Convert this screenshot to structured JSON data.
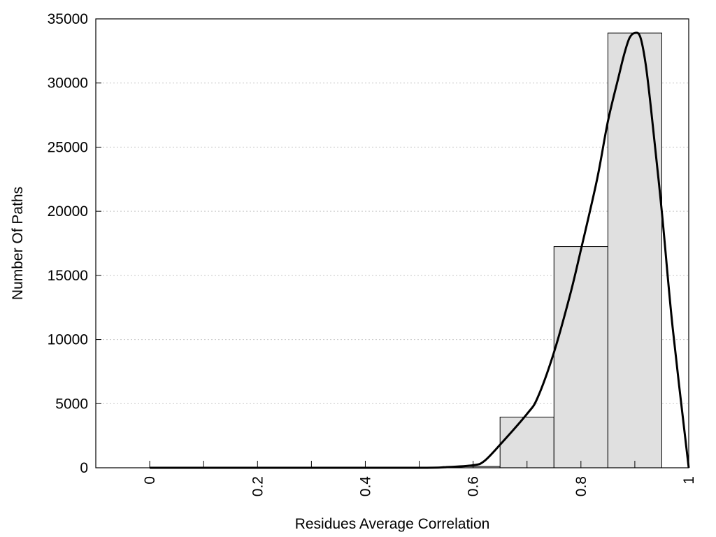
{
  "chart_data": {
    "type": "bar",
    "title": "",
    "xlabel": "Residues Average Correlation",
    "ylabel": "Number Of Paths",
    "xlim": [
      -0.1,
      1.0
    ],
    "ylim": [
      0,
      35000
    ],
    "grid": true,
    "x_ticks": [
      "0",
      "0.2",
      "0.4",
      "0.6",
      "0.8",
      "1"
    ],
    "y_ticks": [
      "0",
      "5000",
      "10000",
      "15000",
      "20000",
      "25000",
      "30000",
      "35000"
    ],
    "bins": [
      {
        "x0": 0.0,
        "x1": 0.05,
        "value": 0
      },
      {
        "x0": 0.05,
        "x1": 0.15,
        "value": 0
      },
      {
        "x0": 0.15,
        "x1": 0.25,
        "value": 0
      },
      {
        "x0": 0.25,
        "x1": 0.35,
        "value": 0
      },
      {
        "x0": 0.35,
        "x1": 0.45,
        "value": 0
      },
      {
        "x0": 0.45,
        "x1": 0.55,
        "value": 0
      },
      {
        "x0": 0.55,
        "x1": 0.65,
        "value": 100
      },
      {
        "x0": 0.65,
        "x1": 0.75,
        "value": 3950
      },
      {
        "x0": 0.75,
        "x1": 0.85,
        "value": 17250
      },
      {
        "x0": 0.85,
        "x1": 0.95,
        "value": 33900
      }
    ],
    "curve": {
      "x": [
        0.0,
        0.3,
        0.5,
        0.55,
        0.6,
        0.62,
        0.65,
        0.7,
        0.72,
        0.75,
        0.78,
        0.8,
        0.83,
        0.85,
        0.87,
        0.88,
        0.89,
        0.9,
        0.91,
        0.92,
        0.93,
        0.95,
        0.97,
        1.0
      ],
      "y": [
        0,
        0,
        0,
        50,
        200,
        500,
        1800,
        4200,
        5500,
        9000,
        13500,
        17000,
        22500,
        27000,
        30500,
        32200,
        33500,
        33900,
        33600,
        31500,
        28000,
        20000,
        11000,
        0
      ]
    },
    "colors": {
      "bar_fill": "#e0e0e0",
      "bar_stroke": "#000000",
      "curve": "#000000",
      "grid": "#c8c8c8"
    }
  }
}
